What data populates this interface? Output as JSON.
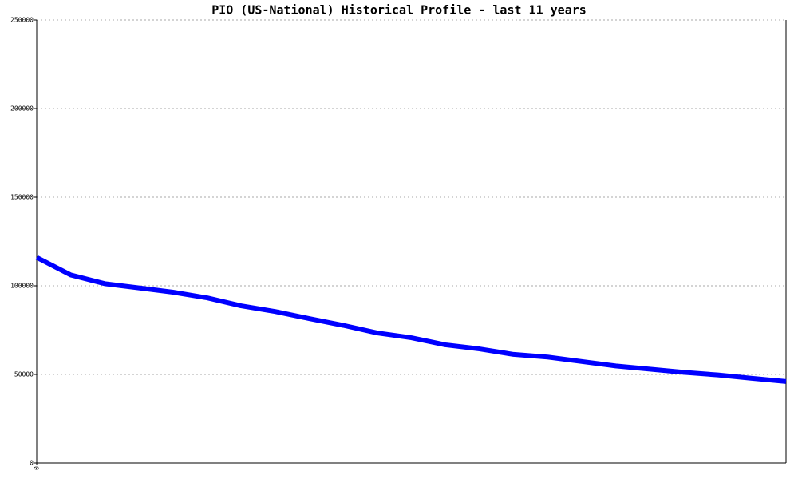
{
  "chart_data": {
    "type": "line",
    "title": "PIO (US-National) Historical Profile - last 11 years",
    "x": [
      0,
      1,
      2,
      3,
      4,
      5,
      6,
      7,
      8,
      9,
      10,
      11,
      12,
      13,
      14,
      15,
      16,
      17,
      18,
      19,
      20,
      21,
      22
    ],
    "series": [
      {
        "name": "PIO",
        "color": "#0000ff",
        "values": [
          116000,
          106100,
          101200,
          98800,
          96400,
          93200,
          88700,
          85500,
          81500,
          77700,
          73400,
          70700,
          66700,
          64400,
          61300,
          59800,
          57300,
          54800,
          53000,
          51200,
          49700,
          47800,
          46000
        ]
      }
    ],
    "xlim": [
      0,
      22
    ],
    "xticks": [
      0
    ],
    "ylim": [
      0,
      250000
    ],
    "yticks": [
      0,
      50000,
      100000,
      150000,
      200000,
      250000
    ],
    "grid": true
  }
}
